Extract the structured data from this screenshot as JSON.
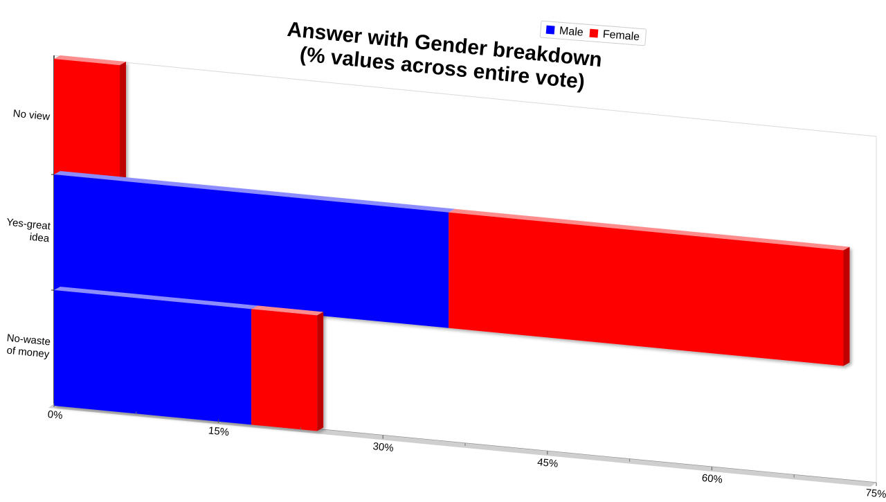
{
  "chart_data": {
    "type": "bar",
    "orientation": "horizontal",
    "stacked": true,
    "title_lines": [
      "Answer with Gender breakdown",
      "(% values across entire vote)"
    ],
    "categories": [
      "No view",
      "Yes-great idea",
      "No-waste of money"
    ],
    "series": [
      {
        "name": "Male",
        "color": "#0000ff",
        "values": [
          0,
          36,
          18
        ]
      },
      {
        "name": "Female",
        "color": "#ff0000",
        "values": [
          6,
          36,
          6
        ]
      }
    ],
    "xlim": [
      0,
      75
    ],
    "x_ticks": [
      "0%",
      "15%",
      "30%",
      "45%",
      "60%",
      "75%"
    ],
    "legend": {
      "position": "top-right",
      "entries": [
        "Male",
        "Female"
      ]
    },
    "grid": false
  }
}
